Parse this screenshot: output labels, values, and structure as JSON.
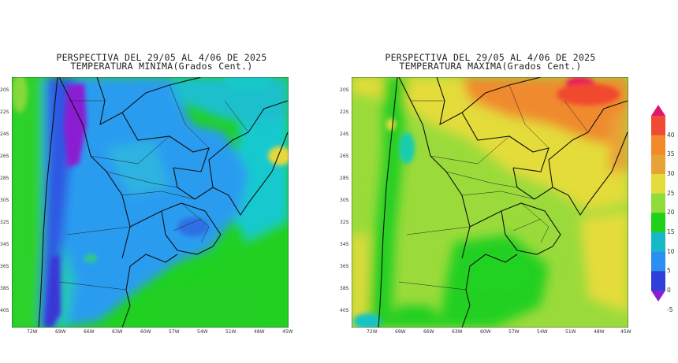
{
  "maps": [
    {
      "title_line1": "PERSPECTIVA DEL 29/05 AL 4/06 DE 2025",
      "title_line2": "TEMPERATURA MINIMA(Grados Cent.)"
    },
    {
      "title_line1": "PERSPECTIVA DEL 29/05 AL 4/06 DE 2025",
      "title_line2": "TEMPERATURA MAXIMA(Grados Cent.)"
    }
  ],
  "lat_labels": [
    "20S",
    "22S",
    "24S",
    "26S",
    "28S",
    "30S",
    "32S",
    "34S",
    "36S",
    "38S",
    "40S"
  ],
  "lon_labels": [
    "72W",
    "69W",
    "66W",
    "63W",
    "60W",
    "57W",
    "54W",
    "51W",
    "48W",
    "45W"
  ],
  "colorbar": {
    "labels": [
      "40",
      "35",
      "30",
      "25",
      "20",
      "15",
      "10",
      "5",
      "0",
      "-5"
    ],
    "colors": [
      "#e0156f",
      "#f04a36",
      "#f28a2c",
      "#e8a336",
      "#e4dc3a",
      "#8fdc3a",
      "#1ed21a",
      "#17b9c9",
      "#2a8ff0",
      "#2f3fd8",
      "#8a1fd1"
    ]
  }
}
